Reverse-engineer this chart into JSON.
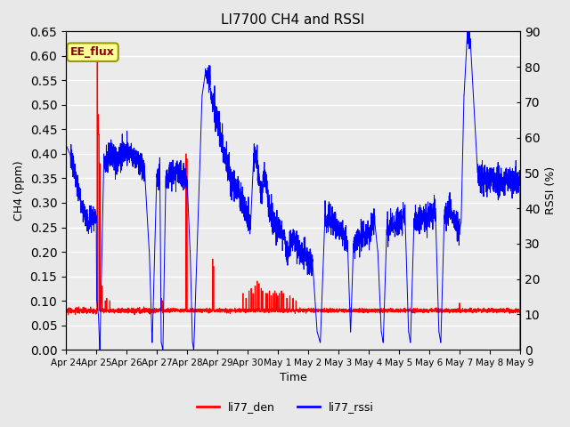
{
  "title": "LI7700 CH4 and RSSI",
  "xlabel": "Time",
  "ylabel_left": "CH4 (ppm)",
  "ylabel_right": "RSSI (%)",
  "annotation": "EE_flux",
  "ylim_left": [
    0.0,
    0.65
  ],
  "ylim_right": [
    0,
    90
  ],
  "color_red": "#FF0000",
  "color_blue": "#0000FF",
  "background_color": "#E8E8E8",
  "plot_bg_color": "#EBEBEB",
  "legend_red": "li77_den",
  "legend_blue": "li77_rssi",
  "x_start": 0,
  "x_end": 15,
  "x_ticks": [
    0,
    1,
    2,
    3,
    4,
    5,
    6,
    7,
    8,
    9,
    10,
    11,
    12,
    13,
    14,
    15
  ],
  "x_tick_labels": [
    "Apr 24",
    "Apr 25",
    "Apr 26",
    "Apr 27",
    "Apr 28",
    "Apr 29",
    "Apr 30",
    "May 1",
    "May 2",
    "May 3",
    "May 4",
    "May 5",
    "May 6",
    "May 7",
    "May 8",
    "May 9"
  ]
}
